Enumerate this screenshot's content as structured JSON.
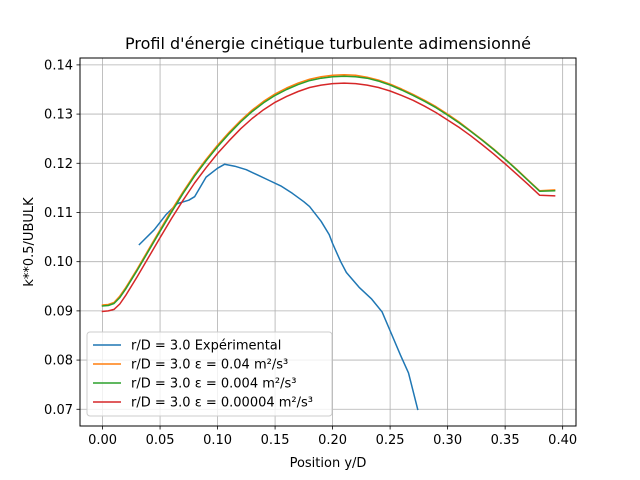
{
  "chart_data": {
    "type": "line",
    "title": "Profil d'énergie cinétique turbulente adimensionné",
    "xlabel": "Position y/D",
    "ylabel": "k**0.5/UBULK",
    "xlim": [
      -0.0196,
      0.4116
    ],
    "ylim": [
      0.0666,
      0.1414
    ],
    "xticks": [
      0.0,
      0.05,
      0.1,
      0.15,
      0.2,
      0.25,
      0.3,
      0.35,
      0.4
    ],
    "xtick_labels": [
      "0.00",
      "0.05",
      "0.10",
      "0.15",
      "0.20",
      "0.25",
      "0.30",
      "0.35",
      "0.40"
    ],
    "yticks": [
      0.07,
      0.08,
      0.09,
      0.1,
      0.11,
      0.12,
      0.13,
      0.14
    ],
    "ytick_labels": [
      "0.07",
      "0.08",
      "0.09",
      "0.10",
      "0.11",
      "0.12",
      "0.13",
      "0.14"
    ],
    "grid": true,
    "legend_position": "lower-left",
    "series": [
      {
        "name": "r/D = 3.0 Expérimental",
        "color": "#1f77b4",
        "x": [
          0.032,
          0.045,
          0.055,
          0.065,
          0.075,
          0.08,
          0.09,
          0.1,
          0.106,
          0.115,
          0.125,
          0.135,
          0.145,
          0.155,
          0.165,
          0.175,
          0.18,
          0.19,
          0.197,
          0.2,
          0.207,
          0.212,
          0.223,
          0.234,
          0.243,
          0.251,
          0.259,
          0.266,
          0.274
        ],
        "y": [
          0.1035,
          0.1065,
          0.1095,
          0.1118,
          0.1125,
          0.1132,
          0.1172,
          0.119,
          0.1198,
          0.1194,
          0.1187,
          0.1176,
          0.1165,
          0.1154,
          0.1139,
          0.1122,
          0.1112,
          0.1082,
          0.1055,
          0.1037,
          0.1,
          0.0978,
          0.0948,
          0.0924,
          0.0898,
          0.0854,
          0.081,
          0.0774,
          0.07
        ]
      },
      {
        "name": "r/D = 3.0 ε = 0.04 m²/s³",
        "color": "#ff7f0e",
        "x": [
          0.0,
          0.005,
          0.01,
          0.015,
          0.02,
          0.03,
          0.04,
          0.05,
          0.06,
          0.07,
          0.08,
          0.09,
          0.1,
          0.11,
          0.12,
          0.13,
          0.14,
          0.15,
          0.16,
          0.17,
          0.18,
          0.19,
          0.2,
          0.21,
          0.22,
          0.23,
          0.24,
          0.25,
          0.26,
          0.27,
          0.28,
          0.29,
          0.3,
          0.31,
          0.32,
          0.33,
          0.34,
          0.35,
          0.36,
          0.37,
          0.38,
          0.393
        ],
        "y": [
          0.0912,
          0.0913,
          0.0917,
          0.093,
          0.0947,
          0.0985,
          0.1025,
          0.1065,
          0.1105,
          0.1142,
          0.1177,
          0.1208,
          0.1237,
          0.1263,
          0.1287,
          0.1308,
          0.1326,
          0.1341,
          0.1353,
          0.1363,
          0.1371,
          0.1376,
          0.1379,
          0.138,
          0.1379,
          0.1375,
          0.1369,
          0.1361,
          0.1351,
          0.134,
          0.1328,
          0.1315,
          0.13,
          0.1284,
          0.1266,
          0.1248,
          0.1229,
          0.1209,
          0.1188,
          0.1166,
          0.1144,
          0.1146
        ]
      },
      {
        "name": "r/D = 3.0 ε = 0.004 m²/s³",
        "color": "#2ca02c",
        "x": [
          0.0,
          0.005,
          0.01,
          0.015,
          0.02,
          0.03,
          0.04,
          0.05,
          0.06,
          0.07,
          0.08,
          0.09,
          0.1,
          0.11,
          0.12,
          0.13,
          0.14,
          0.15,
          0.16,
          0.17,
          0.18,
          0.19,
          0.2,
          0.21,
          0.22,
          0.23,
          0.24,
          0.25,
          0.26,
          0.27,
          0.28,
          0.29,
          0.3,
          0.31,
          0.32,
          0.33,
          0.34,
          0.35,
          0.36,
          0.37,
          0.38,
          0.393
        ],
        "y": [
          0.091,
          0.0911,
          0.0915,
          0.0927,
          0.0944,
          0.0982,
          0.1022,
          0.1062,
          0.1101,
          0.1139,
          0.1174,
          0.1205,
          0.1234,
          0.126,
          0.1284,
          0.1305,
          0.1323,
          0.1338,
          0.135,
          0.136,
          0.1368,
          0.1373,
          0.1376,
          0.1377,
          0.1376,
          0.1373,
          0.1367,
          0.1359,
          0.1349,
          0.1338,
          0.1326,
          0.1313,
          0.1298,
          0.1282,
          0.1265,
          0.1247,
          0.1228,
          0.1208,
          0.1187,
          0.1165,
          0.1143,
          0.1144
        ]
      },
      {
        "name": "r/D = 3.0 ε = 0.00004 m²/s³",
        "color": "#d62728",
        "x": [
          0.0,
          0.005,
          0.01,
          0.015,
          0.02,
          0.03,
          0.04,
          0.05,
          0.06,
          0.07,
          0.08,
          0.09,
          0.1,
          0.11,
          0.12,
          0.13,
          0.14,
          0.15,
          0.16,
          0.17,
          0.18,
          0.19,
          0.2,
          0.21,
          0.22,
          0.23,
          0.24,
          0.25,
          0.26,
          0.27,
          0.28,
          0.29,
          0.3,
          0.31,
          0.32,
          0.33,
          0.34,
          0.35,
          0.36,
          0.37,
          0.38,
          0.393
        ],
        "y": [
          0.0899,
          0.09,
          0.0903,
          0.0914,
          0.0931,
          0.0969,
          0.1009,
          0.1049,
          0.1088,
          0.1125,
          0.116,
          0.1191,
          0.122,
          0.1246,
          0.127,
          0.1291,
          0.1309,
          0.1324,
          0.1336,
          0.1346,
          0.1354,
          0.1359,
          0.1362,
          0.1363,
          0.1362,
          0.1359,
          0.1354,
          0.1347,
          0.1338,
          0.1328,
          0.1316,
          0.1303,
          0.1288,
          0.1273,
          0.1256,
          0.1238,
          0.1219,
          0.1199,
          0.1178,
          0.1157,
          0.1135,
          0.1134
        ]
      }
    ]
  }
}
